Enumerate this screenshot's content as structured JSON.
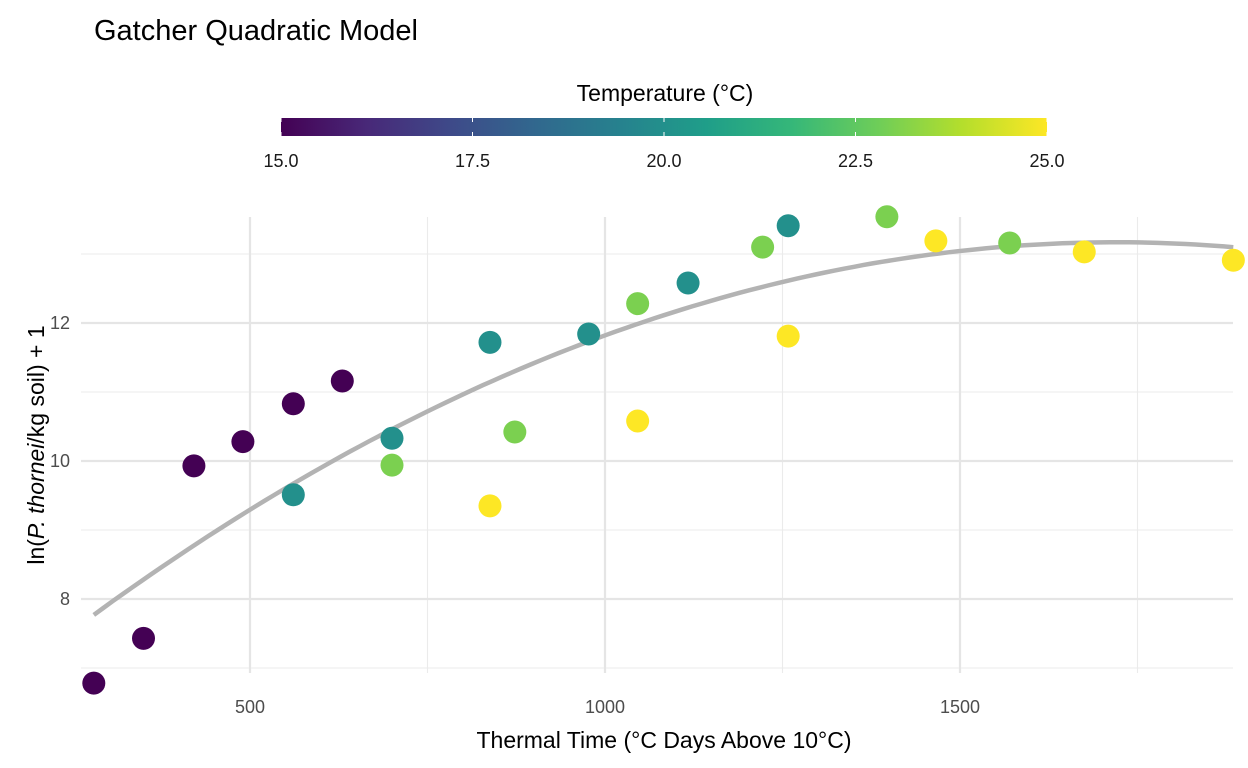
{
  "chart_data": {
    "type": "scatter",
    "title": "Gatcher Quadratic Model",
    "xlabel": "Thermal Time (°C Days Above 10°C)",
    "ylabel": {
      "prefix": "ln(",
      "italic": "P. thornei",
      "suffix": "/kg soil) + 1"
    },
    "xlim": [
      280,
      1885
    ],
    "ylim": [
      6.78,
      13.54
    ],
    "x_ticks": [
      500,
      1000,
      1500
    ],
    "x_tick_labels": [
      "500",
      "1000",
      "1500"
    ],
    "x_minor_ticks": [
      750,
      1250,
      1750
    ],
    "y_ticks": [
      8,
      10,
      12
    ],
    "y_tick_labels": [
      "8",
      "10",
      "12"
    ],
    "y_minor_ticks": [
      7,
      9,
      11,
      13
    ],
    "grid": true,
    "legend": {
      "title": "Temperature (°C)",
      "type": "colorbar",
      "position": "top",
      "range": [
        15,
        25
      ],
      "ticks": [
        15,
        17.5,
        20,
        22.5,
        25
      ],
      "tick_labels": [
        "15.0",
        "17.5",
        "20.0",
        "22.5",
        "25.0"
      ],
      "palette": "viridis",
      "colors": [
        "#440154",
        "#482878",
        "#3E4A89",
        "#31688E",
        "#26828E",
        "#1F9E89",
        "#35B779",
        "#6DCD59",
        "#B4DE2C",
        "#FDE725"
      ]
    },
    "points": [
      {
        "x": 280,
        "y": 6.78,
        "temperature": 15
      },
      {
        "x": 350,
        "y": 7.43,
        "temperature": 15
      },
      {
        "x": 421,
        "y": 9.93,
        "temperature": 15
      },
      {
        "x": 490,
        "y": 10.28,
        "temperature": 15
      },
      {
        "x": 561,
        "y": 10.83,
        "temperature": 15
      },
      {
        "x": 630,
        "y": 11.16,
        "temperature": 15
      },
      {
        "x": 561,
        "y": 9.51,
        "temperature": 20
      },
      {
        "x": 700,
        "y": 10.33,
        "temperature": 20
      },
      {
        "x": 700,
        "y": 9.94,
        "temperature": 23
      },
      {
        "x": 838,
        "y": 11.72,
        "temperature": 20
      },
      {
        "x": 838,
        "y": 9.35,
        "temperature": 25
      },
      {
        "x": 873,
        "y": 10.42,
        "temperature": 23
      },
      {
        "x": 977,
        "y": 11.84,
        "temperature": 20
      },
      {
        "x": 1046,
        "y": 12.28,
        "temperature": 23
      },
      {
        "x": 1046,
        "y": 10.58,
        "temperature": 25
      },
      {
        "x": 1117,
        "y": 12.58,
        "temperature": 20
      },
      {
        "x": 1222,
        "y": 13.1,
        "temperature": 23
      },
      {
        "x": 1258,
        "y": 13.41,
        "temperature": 20
      },
      {
        "x": 1258,
        "y": 11.81,
        "temperature": 25
      },
      {
        "x": 1397,
        "y": 13.54,
        "temperature": 23
      },
      {
        "x": 1466,
        "y": 13.19,
        "temperature": 25
      },
      {
        "x": 1570,
        "y": 13.16,
        "temperature": 23
      },
      {
        "x": 1675,
        "y": 13.03,
        "temperature": 25
      },
      {
        "x": 1885,
        "y": 12.91,
        "temperature": 25
      }
    ],
    "fit_line": {
      "type": "quadratic",
      "coefficients": {
        "a": 5.466,
        "b": 0.008958,
        "c": -2.604e-06
      },
      "x_range": [
        280,
        1885
      ],
      "color": "#B3B3B3"
    }
  }
}
